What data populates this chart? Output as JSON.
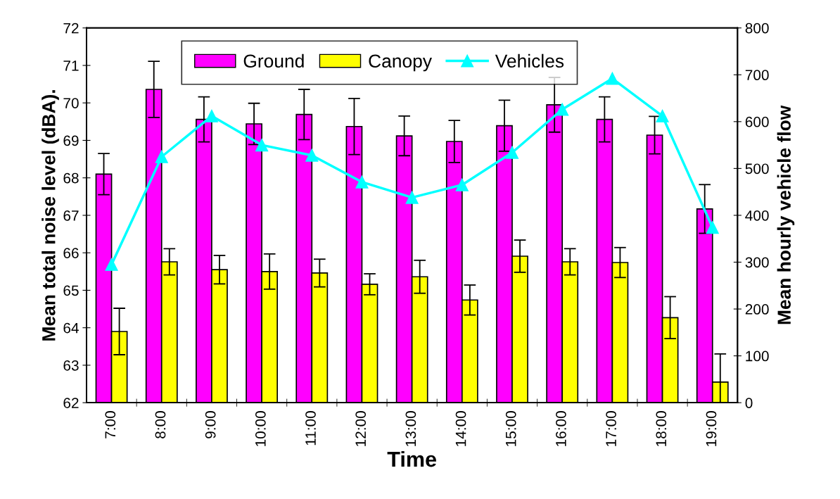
{
  "chart_data": {
    "type": "bar",
    "xlabel": "Time",
    "ylabel": "Mean total noise level (dBA).",
    "y2label": "Mean hourly vehicle flow",
    "categories": [
      "7:00",
      "8:00",
      "9:00",
      "10:00",
      "11:00",
      "12:00",
      "13:00",
      "14:00",
      "15:00",
      "16:00",
      "17:00",
      "18:00",
      "19:00"
    ],
    "series": [
      {
        "name": "Ground",
        "color": "#ff00ff",
        "values": [
          68.1,
          70.36,
          69.56,
          69.44,
          69.69,
          69.37,
          69.12,
          68.97,
          69.39,
          69.95,
          69.56,
          69.14,
          67.17
        ],
        "errors": [
          0.55,
          0.75,
          0.6,
          0.55,
          0.67,
          0.75,
          0.53,
          0.56,
          0.68,
          0.73,
          0.6,
          0.5,
          0.65
        ]
      },
      {
        "name": "Canopy",
        "color": "#ffff00",
        "values": [
          63.9,
          65.76,
          65.55,
          65.5,
          65.46,
          65.16,
          65.36,
          64.74,
          65.91,
          65.76,
          65.74,
          64.27,
          62.55
        ],
        "errors": [
          0.62,
          0.35,
          0.38,
          0.47,
          0.37,
          0.28,
          0.44,
          0.4,
          0.43,
          0.35,
          0.4,
          0.56,
          0.75
        ]
      },
      {
        "name": "Vehicles",
        "type": "line",
        "axis": "y2",
        "color": "#00ffff",
        "marker": "triangle",
        "values": [
          295,
          525,
          612,
          550,
          528,
          471,
          438,
          465,
          534,
          626,
          692,
          612,
          374
        ]
      }
    ],
    "ylim": [
      62,
      72
    ],
    "yticks": [
      62,
      63,
      64,
      65,
      66,
      67,
      68,
      69,
      70,
      71,
      72
    ],
    "y2lim": [
      0,
      800
    ],
    "y2ticks": [
      0,
      100,
      200,
      300,
      400,
      500,
      600,
      700,
      800
    ],
    "grid": false,
    "legend": "top"
  }
}
